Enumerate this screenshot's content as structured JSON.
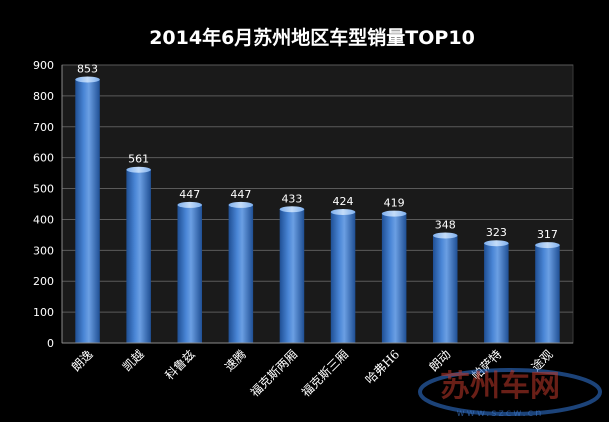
{
  "chart_data": {
    "type": "bar",
    "title": "2014年6月苏州地区车型销量TOP10",
    "xlabel": "",
    "ylabel": "",
    "categories": [
      "朗逸",
      "凯越",
      "科鲁兹",
      "速腾",
      "福克斯两厢",
      "福克斯三厢",
      "哈弗H6",
      "朗动",
      "帕萨特",
      "途观"
    ],
    "values": [
      853,
      561,
      447,
      447,
      433,
      424,
      419,
      348,
      323,
      317
    ],
    "ylim": [
      0,
      900
    ],
    "yticks": [
      0,
      100,
      200,
      300,
      400,
      500,
      600,
      700,
      800,
      900
    ],
    "grid": true,
    "legend": "none",
    "colors": {
      "background": "#000000",
      "plot_area": "#1a1a1a",
      "bar_dark": "#1f4f94",
      "bar_mid": "#4a86d6",
      "bar_light": "#a9c9f2",
      "grid": "#5a5a5a",
      "text": "#ffffff"
    }
  },
  "watermark": {
    "text": "苏州车网",
    "url_text": "www.szcw.cn"
  }
}
